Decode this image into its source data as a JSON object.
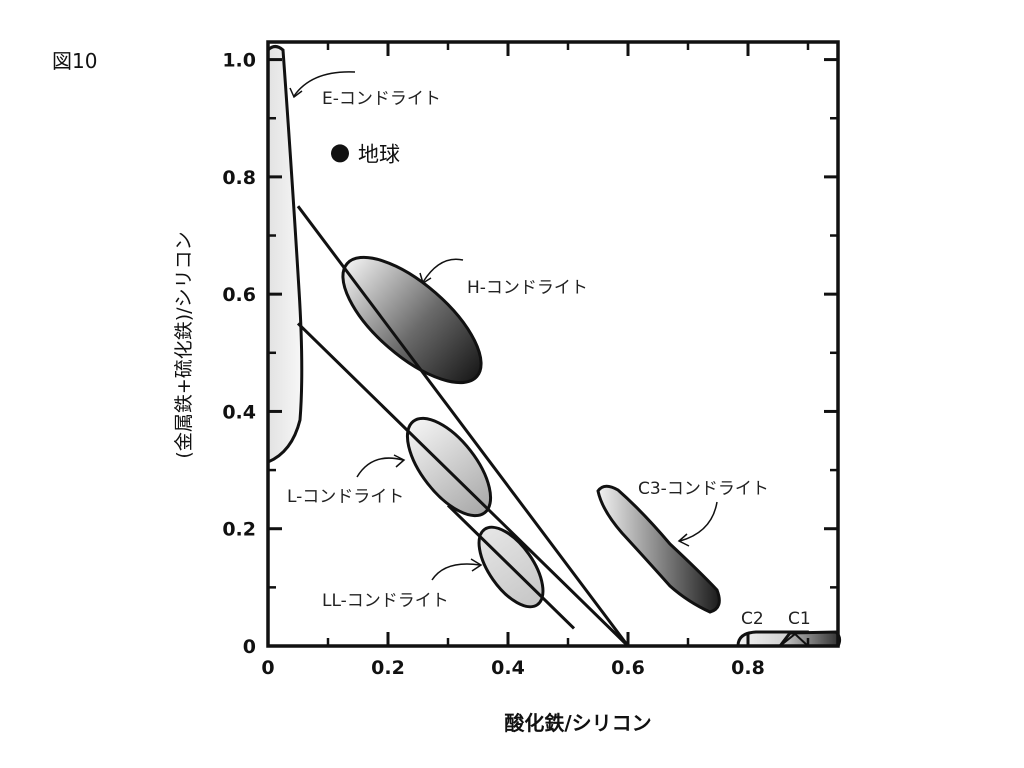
{
  "figure_label": "図10",
  "chart_data": {
    "type": "scatter",
    "xlabel": "酸化鉄/シリコン",
    "ylabel": "(金属鉄+硫化鉄)/シリコン",
    "xlim": [
      0,
      0.95
    ],
    "ylim": [
      0,
      1.03
    ],
    "x_ticks": [
      0,
      0.2,
      0.4,
      0.6,
      0.8
    ],
    "x_tick_labels": [
      "0",
      "0.2",
      "0.4",
      "0.6",
      "0.8"
    ],
    "y_ticks": [
      0,
      0.2,
      0.4,
      0.6,
      0.8,
      1.0
    ],
    "y_tick_labels": [
      "0",
      "0.2",
      "0.4",
      "0.6",
      "0.8",
      "1.0"
    ],
    "points": [
      {
        "name": "地球",
        "x": 0.12,
        "y": 0.84
      }
    ],
    "lines": [
      {
        "x": [
          0.05,
          0.6
        ],
        "y": [
          0.75,
          0.0
        ]
      },
      {
        "x": [
          0.05,
          0.6
        ],
        "y": [
          0.55,
          0.0
        ]
      },
      {
        "x": [
          0.3,
          0.51
        ],
        "y": [
          0.24,
          0.03
        ]
      }
    ],
    "regions": [
      {
        "name": "E-コンドライト",
        "center": [
          0.02,
          0.67
        ]
      },
      {
        "name": "H-コンドライト",
        "center": [
          0.22,
          0.56
        ]
      },
      {
        "name": "L-コンドライト",
        "center": [
          0.28,
          0.31
        ]
      },
      {
        "name": "LL-コンドライト",
        "center": [
          0.39,
          0.14
        ]
      },
      {
        "name": "C3-コンドライト",
        "center": [
          0.64,
          0.17
        ]
      },
      {
        "name": "C2",
        "center": [
          0.84,
          0.01
        ]
      },
      {
        "name": "C1",
        "center": [
          0.89,
          0.015
        ]
      }
    ]
  }
}
